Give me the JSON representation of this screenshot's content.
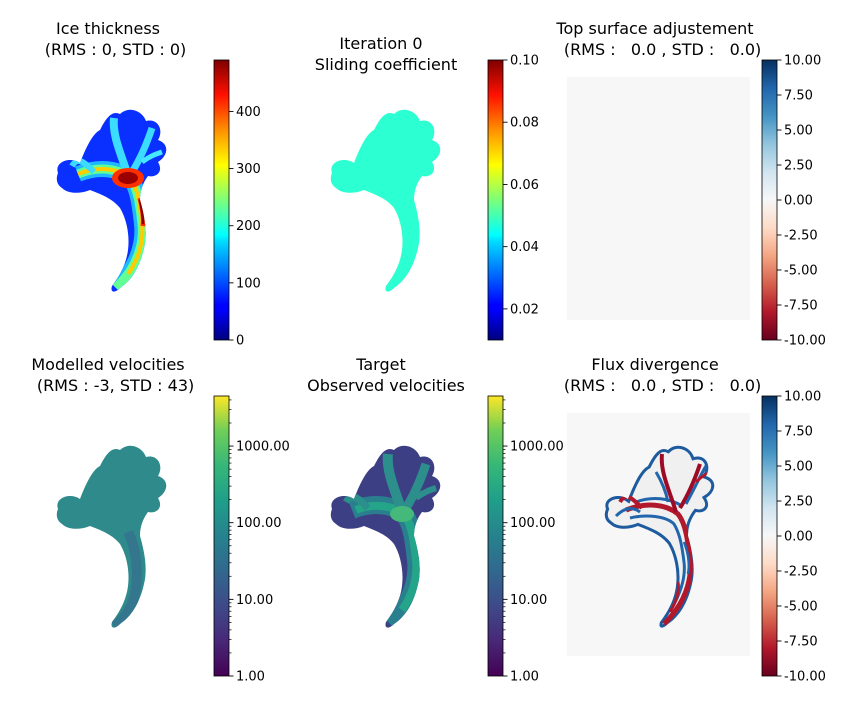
{
  "chart_data": [
    {
      "type": "heatmap",
      "title": [
        "Ice thickness",
        " (RMS : 0, STD : 0)"
      ],
      "colormap": "jet",
      "colorbar": {
        "scale": "linear",
        "range": [
          0,
          490
        ],
        "ticks": [
          0,
          100,
          200,
          300,
          400
        ],
        "tick_labels": [
          "0",
          "100",
          "200",
          "300",
          "400"
        ]
      },
      "frame": false
    },
    {
      "type": "heatmap",
      "title": [
        "Iteration 0",
        "Sliding coefficient"
      ],
      "colormap": "jet",
      "colorbar": {
        "scale": "linear",
        "range": [
          0.01,
          0.1
        ],
        "ticks": [
          0.02,
          0.04,
          0.06,
          0.08,
          0.1
        ],
        "tick_labels": [
          "0.02",
          "0.04",
          "0.06",
          "0.08",
          "0.10"
        ]
      },
      "uniform_value": 0.05,
      "frame": false
    },
    {
      "type": "heatmap",
      "title": [
        "Top surface adjustement",
        " (RMS :   0.0 , STD :   0.0)"
      ],
      "colormap": "RdBu",
      "colorbar": {
        "scale": "linear",
        "range": [
          -10,
          10
        ],
        "ticks": [
          -10,
          -7.5,
          -5,
          -2.5,
          0,
          2.5,
          5,
          7.5,
          10
        ],
        "tick_labels": [
          "-10.00",
          "-7.50",
          "-5.00",
          "-2.50",
          "0.00",
          "2.50",
          "5.00",
          "7.50",
          "10.00"
        ]
      },
      "uniform_value": 0,
      "frame": false
    },
    {
      "type": "heatmap",
      "title": [
        "Modelled velocities",
        " (RMS : -3, STD : 43)"
      ],
      "colormap": "viridis",
      "colorbar": {
        "scale": "log",
        "range": [
          1,
          4500
        ],
        "ticks": [
          1,
          10,
          100,
          1000
        ],
        "tick_labels": [
          "1.00",
          "10.00",
          "100.00",
          "1000.00"
        ]
      },
      "frame": false
    },
    {
      "type": "heatmap",
      "title": [
        "Target",
        "Observed velocities"
      ],
      "colormap": "viridis",
      "colorbar": {
        "scale": "log",
        "range": [
          1,
          4500
        ],
        "ticks": [
          1,
          10,
          100,
          1000
        ],
        "tick_labels": [
          "1.00",
          "10.00",
          "100.00",
          "1000.00"
        ]
      },
      "frame": false
    },
    {
      "type": "heatmap",
      "title": [
        "Flux divergence",
        " (RMS :   0.0 , STD :   0.0)"
      ],
      "colormap": "RdBu",
      "colorbar": {
        "scale": "linear",
        "range": [
          -10,
          10
        ],
        "ticks": [
          -10,
          -7.5,
          -5,
          -2.5,
          0,
          2.5,
          5,
          7.5,
          10
        ],
        "tick_labels": [
          "-10.00",
          "-7.50",
          "-5.00",
          "-2.50",
          "0.00",
          "2.50",
          "5.00",
          "7.50",
          "10.00"
        ]
      },
      "frame": false
    }
  ]
}
